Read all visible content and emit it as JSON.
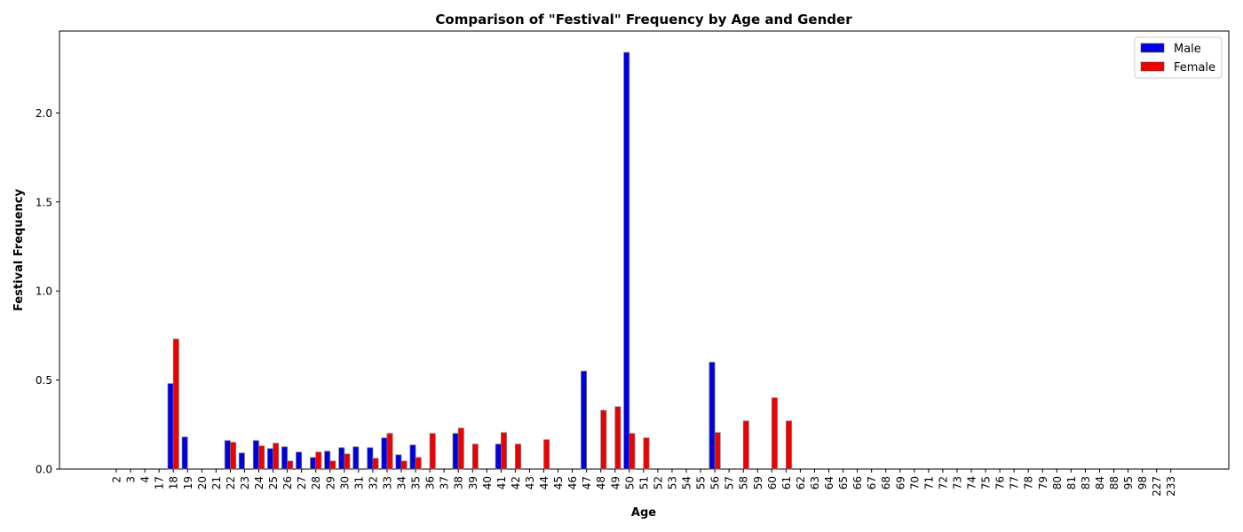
{
  "chart_data": {
    "type": "bar",
    "title": "Comparison of \"Festival\" Frequency by Age and Gender",
    "xlabel": "Age",
    "ylabel": "Festival Frequency",
    "ylim": [
      0,
      2.46
    ],
    "yticks": [
      0.0,
      0.5,
      1.0,
      1.5,
      2.0
    ],
    "ytick_labels": [
      "0.0",
      "0.5",
      "1.0",
      "1.5",
      "2.0"
    ],
    "legend_position": "top-right",
    "categories": [
      "2",
      "3",
      "4",
      "17",
      "18",
      "19",
      "20",
      "21",
      "22",
      "23",
      "24",
      "25",
      "26",
      "27",
      "28",
      "29",
      "30",
      "31",
      "32",
      "33",
      "34",
      "35",
      "36",
      "37",
      "38",
      "39",
      "40",
      "41",
      "42",
      "43",
      "44",
      "45",
      "46",
      "47",
      "48",
      "49",
      "50",
      "51",
      "52",
      "53",
      "54",
      "55",
      "56",
      "57",
      "58",
      "59",
      "60",
      "61",
      "62",
      "63",
      "64",
      "65",
      "66",
      "67",
      "68",
      "69",
      "70",
      "71",
      "72",
      "73",
      "74",
      "75",
      "76",
      "77",
      "78",
      "79",
      "80",
      "81",
      "83",
      "84",
      "88",
      "95",
      "98",
      "227",
      "233"
    ],
    "series": [
      {
        "name": "Male",
        "color": "#0000dd",
        "values": [
          0,
          0,
          0,
          0,
          0.48,
          0.18,
          0,
          0,
          0.16,
          0.09,
          0.16,
          0.115,
          0.125,
          0.095,
          0.065,
          0.1,
          0.12,
          0.125,
          0.12,
          0.175,
          0.08,
          0.135,
          0,
          0,
          0.2,
          0,
          0,
          0.14,
          0,
          0,
          0,
          0,
          0,
          0.55,
          0,
          0,
          2.34,
          0,
          0,
          0,
          0,
          0,
          0.6,
          0,
          0,
          0,
          0,
          0,
          0,
          0,
          0,
          0,
          0,
          0,
          0,
          0,
          0,
          0,
          0,
          0,
          0,
          0,
          0,
          0,
          0,
          0,
          0,
          0,
          0,
          0,
          0,
          0,
          0,
          0,
          0
        ]
      },
      {
        "name": "Female",
        "color": "#ee0000",
        "values": [
          0,
          0,
          0,
          0,
          0.73,
          0,
          0,
          0,
          0.15,
          0,
          0.13,
          0.145,
          0.045,
          0,
          0.095,
          0.045,
          0.085,
          0,
          0.06,
          0.2,
          0.045,
          0.065,
          0.2,
          0,
          0.23,
          0.14,
          0,
          0.205,
          0.14,
          0,
          0.165,
          0,
          0,
          0,
          0.33,
          0.35,
          0.2,
          0.175,
          0,
          0,
          0,
          0,
          0.205,
          0,
          0.27,
          0,
          0.4,
          0.27,
          0,
          0,
          0,
          0,
          0,
          0,
          0,
          0,
          0,
          0,
          0,
          0,
          0,
          0,
          0,
          0,
          0,
          0,
          0,
          0,
          0,
          0,
          0,
          0,
          0,
          0,
          0
        ]
      }
    ]
  }
}
